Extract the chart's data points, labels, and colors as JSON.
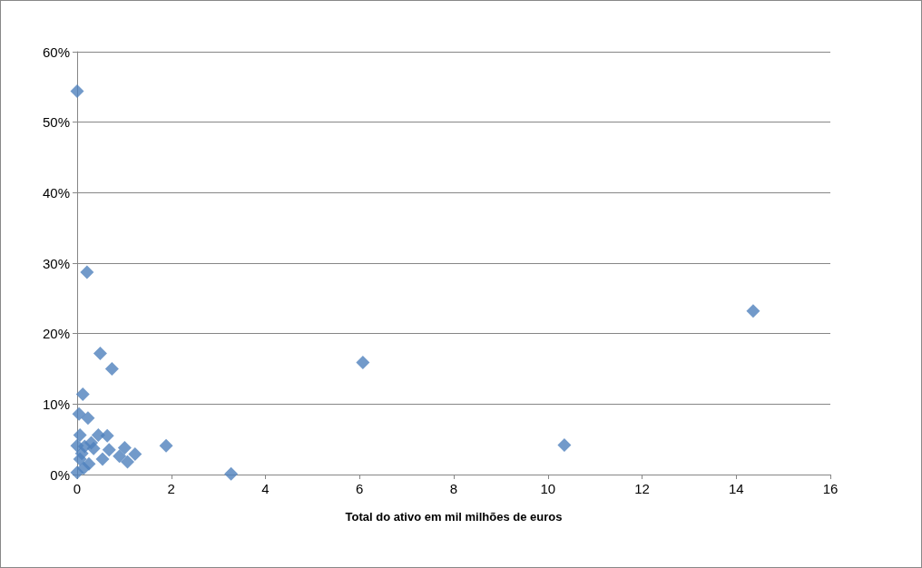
{
  "chart_data": {
    "type": "scatter",
    "xlabel": "Total do ativo em mil milhões de euros",
    "x": [
      0,
      0.21,
      0.49,
      0.74,
      0.12,
      0.04,
      0.23,
      0.06,
      0.45,
      0.64,
      0,
      0.16,
      0.35,
      0.68,
      1.01,
      1.89,
      1.23,
      1.07,
      0.54,
      0.06,
      0.25,
      0,
      0.14,
      3.27,
      6.07,
      10.35,
      14.36,
      0.3,
      0.1,
      0.9
    ],
    "values": [
      54.4,
      28.7,
      17.2,
      15.0,
      11.4,
      8.6,
      8.0,
      5.6,
      5.6,
      5.5,
      4.1,
      4.0,
      3.7,
      3.5,
      3.8,
      4.1,
      2.9,
      1.8,
      2.2,
      2.2,
      1.5,
      0.3,
      0.9,
      0.1,
      15.9,
      4.2,
      23.2,
      4.5,
      3.0,
      2.6
    ],
    "color": "#4f81bd",
    "marker": "diamond",
    "xlim": [
      0,
      16
    ],
    "xticks": [
      0,
      2,
      4,
      6,
      8,
      10,
      12,
      14,
      16
    ],
    "ylim": [
      0,
      60
    ],
    "yticks": [
      {
        "value": 0,
        "label": "0%"
      },
      {
        "value": 10,
        "label": "10%"
      },
      {
        "value": 20,
        "label": "20%"
      },
      {
        "value": 30,
        "label": "30%"
      },
      {
        "value": 40,
        "label": "40%"
      },
      {
        "value": 50,
        "label": "50%"
      },
      {
        "value": 60,
        "label": "60%"
      }
    ],
    "grid": "y"
  }
}
